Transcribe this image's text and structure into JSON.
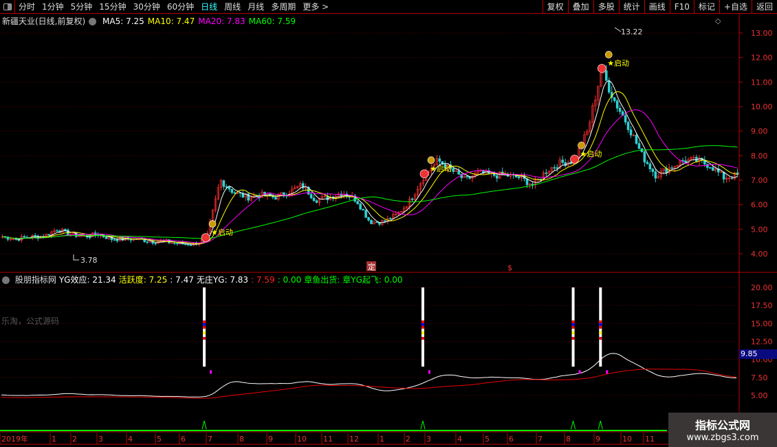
{
  "toolbar": {
    "tabs": [
      "分时",
      "1分钟",
      "5分钟",
      "15分钟",
      "30分钟",
      "60分钟",
      "日线",
      "周线",
      "月线",
      "多周期",
      "更多 >"
    ],
    "active": "日线",
    "right_buttons": [
      "复权",
      "叠加",
      "多股",
      "统计",
      "画线",
      "F10",
      "标记",
      "+自选",
      "返回"
    ]
  },
  "main": {
    "title": "新疆天业(日线,前复权)",
    "ma": [
      {
        "label": "MA5: 7.25",
        "color": "#ffffff"
      },
      {
        "label": "MA10: 7.47",
        "color": "#ffff00"
      },
      {
        "label": "MA20: 7.83",
        "color": "#ff00ff"
      },
      {
        "label": "MA60: 7.59",
        "color": "#00ff00"
      }
    ],
    "high_label": "13.22",
    "low_label": "3.78",
    "signal_label": "启动",
    "marks": [
      "定",
      "$"
    ]
  },
  "indicator": {
    "name": "股朋指标网",
    "items": [
      {
        "t": "YG效应: 21.34",
        "c": "#ffffff"
      },
      {
        "t": "活跃度: 7.25",
        "c": "#ffff00"
      },
      {
        "t": ": 7.47",
        "c": "#ffffff"
      },
      {
        "t": "无庄YG: 7.83",
        "c": "#ffffff"
      },
      {
        "t": ": 7.59",
        "c": "#ff2020"
      },
      {
        "t": ": 0.00",
        "c": "#00ff00"
      },
      {
        "t": "章鱼出货:",
        "c": "#00ff00"
      },
      {
        "t": "章YG起飞: 0.00",
        "c": "#00ff00"
      }
    ],
    "current_value": "9.85",
    "watermark": "乐淘，公式源码"
  },
  "watermark": {
    "title": "指标公式网",
    "url": "www.zbgs3.com"
  },
  "chart_data": {
    "type": "candlestick",
    "price_axis": {
      "ticks": [
        13,
        12,
        11,
        10,
        9,
        8,
        7,
        6,
        5,
        4
      ],
      "range": [
        3.6,
        13.4
      ]
    },
    "indicator_axis": {
      "ticks": [
        20,
        17.5,
        15,
        12.5,
        10,
        7.5,
        5
      ],
      "range": [
        2.5,
        21
      ]
    },
    "time_axis": [
      "2019年",
      "1",
      "2",
      "3",
      "4",
      "5",
      "6",
      "7",
      "8",
      "9",
      "10",
      "11",
      "12",
      "1",
      "2",
      "3",
      "4",
      "5",
      "6",
      "7",
      "8",
      "9",
      "10",
      "11"
    ],
    "closes": [
      4.7,
      4.6,
      4.7,
      4.7,
      5.0,
      4.8,
      4.7,
      4.8,
      4.6,
      4.6,
      4.6,
      4.5,
      4.5,
      4.4,
      4.4,
      4.6,
      7.0,
      6.5,
      6.3,
      6.4,
      6.3,
      6.5,
      6.8,
      6.2,
      6.3,
      6.5,
      6.2,
      5.3,
      5.3,
      5.6,
      6.2,
      7.2,
      7.8,
      7.4,
      7.0,
      7.3,
      7.2,
      7.2,
      7.1,
      6.8,
      7.4,
      7.7,
      7.8,
      9.0,
      11.5,
      10.2,
      9.2,
      8.0,
      7.2,
      7.5,
      7.8,
      7.8,
      7.6,
      7.1,
      7.2
    ],
    "signals": [
      {
        "index": 15,
        "label": "启动"
      },
      {
        "index": 31,
        "label": "启动"
      },
      {
        "index": 42,
        "label": "启动"
      },
      {
        "index": 44,
        "label": "启动"
      }
    ]
  }
}
